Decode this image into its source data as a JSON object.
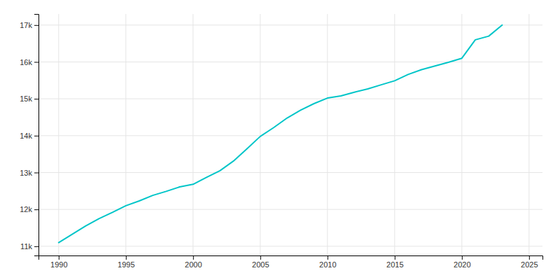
{
  "chart_data": {
    "type": "line",
    "x": [
      1990,
      1992,
      1993,
      1994,
      1995,
      1996,
      1997,
      1998,
      1999,
      2000,
      2001,
      2002,
      2003,
      2004,
      2005,
      2006,
      2007,
      2008,
      2009,
      2010,
      2011,
      2012,
      2013,
      2014,
      2015,
      2016,
      2017,
      2018,
      2019,
      2020,
      2021,
      2022,
      2023
    ],
    "values": [
      11100,
      11550,
      11750,
      11920,
      12100,
      12230,
      12380,
      12490,
      12610,
      12680,
      12870,
      13050,
      13310,
      13640,
      13980,
      14220,
      14480,
      14690,
      14870,
      15020,
      15080,
      15180,
      15270,
      15380,
      15490,
      15660,
      15790,
      15890,
      15990,
      16100,
      16600,
      16700,
      17000
    ],
    "color": "#00C5C8",
    "xlim": [
      1988.5,
      2026
    ],
    "ylim": [
      10750,
      17300
    ],
    "xticks": [
      1990,
      1995,
      2000,
      2005,
      2010,
      2015,
      2020,
      2025
    ],
    "yticks": [
      {
        "value": 11000,
        "label": "11k"
      },
      {
        "value": 12000,
        "label": "12k"
      },
      {
        "value": 13000,
        "label": "13k"
      },
      {
        "value": 14000,
        "label": "14k"
      },
      {
        "value": 15000,
        "label": "15k"
      },
      {
        "value": 16000,
        "label": "16k"
      },
      {
        "value": 17000,
        "label": "17k"
      }
    ],
    "grid": true
  }
}
